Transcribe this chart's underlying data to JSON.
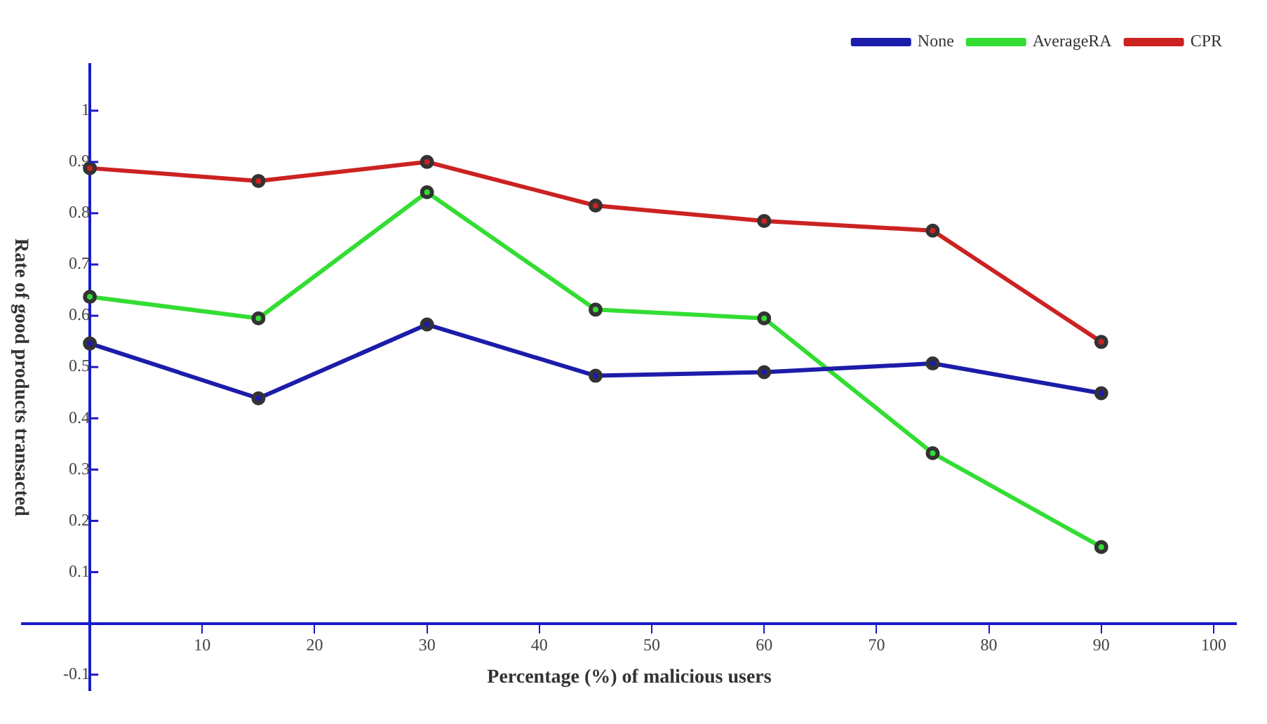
{
  "chart_data": {
    "type": "line",
    "xlabel": "Percentage (%) of malicious users",
    "ylabel": "Rate of good products transacted",
    "x": [
      0,
      15,
      30,
      45,
      60,
      75,
      90
    ],
    "series": [
      {
        "name": "None",
        "color": "#1c1caa",
        "values": [
          0.546,
          0.439,
          0.583,
          0.483,
          0.49,
          0.507,
          0.449
        ]
      },
      {
        "name": "AverageRA",
        "color": "#33dd33",
        "values": [
          0.637,
          0.595,
          0.841,
          0.612,
          0.595,
          0.332,
          0.149
        ]
      },
      {
        "name": "CPR",
        "color": "#cc2222",
        "values": [
          0.888,
          0.863,
          0.9,
          0.815,
          0.785,
          0.766,
          0.549
        ]
      }
    ],
    "xlim": [
      -6,
      102
    ],
    "xticks": [
      {
        "value": 0,
        "label": null
      },
      10,
      20,
      30,
      40,
      50,
      60,
      70,
      80,
      90,
      100
    ],
    "ylim": [
      -0.13,
      1.09
    ],
    "yticks": [
      -0.1,
      {
        "value": 0,
        "label": null
      },
      0.1,
      0.2,
      0.3,
      0.4,
      0.5,
      0.6,
      0.7,
      0.8,
      0.9,
      1
    ],
    "grid": false,
    "legend": "top right",
    "marker": "circle",
    "line_style": "solid"
  }
}
